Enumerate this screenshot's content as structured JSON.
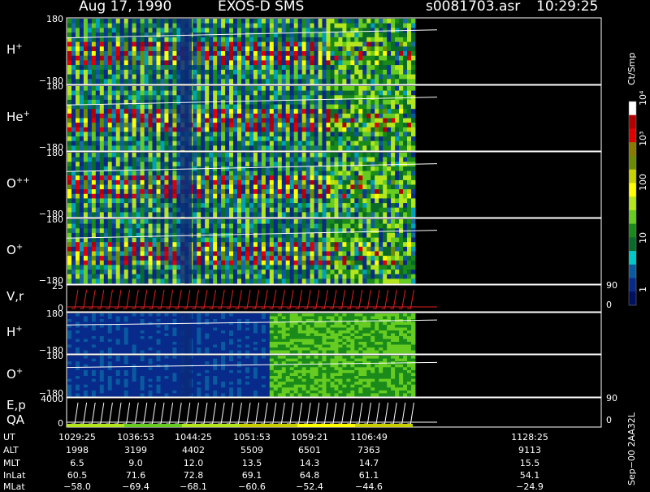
{
  "header": {
    "date": "Aug 17, 1990",
    "instrument": "EXOS-D SMS",
    "file": "s0081703.asr",
    "time": "10:29:25"
  },
  "panels": [
    {
      "label": "H",
      "sup": "+",
      "ytop": "180",
      "ybot": "−180"
    },
    {
      "label": "He",
      "sup": "+",
      "ytop": "180",
      "ybot": "−180"
    },
    {
      "label": "O",
      "sup": "++",
      "ytop": "180",
      "ybot": "−180"
    },
    {
      "label": "O",
      "sup": "+",
      "ytop": "180",
      "ybot": "−180"
    },
    {
      "label": "V,r",
      "sup": "",
      "ytop": "25",
      "ybot": "0",
      "rtop": "90",
      "rbot": "0"
    },
    {
      "label": "H",
      "sup": "+",
      "ytop": "180",
      "ybot": "−180"
    },
    {
      "label": "O",
      "sup": "+",
      "ytop": "180",
      "ybot": "−180"
    },
    {
      "label": "E,p",
      "label2": "QA",
      "sup": "",
      "ytop": "4000",
      "ybot": "0",
      "rtop": "90",
      "rbot": "0"
    }
  ],
  "colorbar": {
    "unit": "Ct/Smp",
    "labels": [
      "10⁴",
      "10³",
      "100",
      "10",
      "1"
    ],
    "colors": [
      "#ffffff",
      "#b30000",
      "#e00000",
      "#8a7a00",
      "#6e8a00",
      "#c8d000",
      "#ffff00",
      "#b4e61e",
      "#66cc22",
      "#1a8a1a",
      "#0a6a2a",
      "#00c8c8",
      "#0a5aa0",
      "#082a8a",
      "#001060"
    ]
  },
  "footer": {
    "rows": [
      "UT",
      "ALT",
      "MLT",
      "InLat",
      "MLat"
    ],
    "columns": [
      {
        "ut": "1029:25",
        "alt": "1998",
        "mlt": "6.5",
        "inlat": "60.5",
        "mlat": "−58.0"
      },
      {
        "ut": "1036:53",
        "alt": "3199",
        "mlt": "9.0",
        "inlat": "71.6",
        "mlat": "−69.4"
      },
      {
        "ut": "1044:25",
        "alt": "4402",
        "mlt": "12.0",
        "inlat": "72.8",
        "mlat": "−68.1"
      },
      {
        "ut": "1051:53",
        "alt": "5509",
        "mlt": "13.5",
        "inlat": "69.1",
        "mlat": "−60.6"
      },
      {
        "ut": "1059:21",
        "alt": "6501",
        "mlt": "14.3",
        "inlat": "64.8",
        "mlat": "−52.4"
      },
      {
        "ut": "1106:49",
        "alt": "7363",
        "mlt": "14.7",
        "inlat": "61.1",
        "mlat": "−44.6"
      },
      {
        "ut": "1128:25",
        "alt": "9113",
        "mlt": "15.5",
        "inlat": "54.1",
        "mlat": "−24.9"
      }
    ],
    "stamp": "Sep−00  2AA32L"
  },
  "chart_data": {
    "type": "heatmap",
    "title": "Aug 17, 1990   EXOS-D SMS",
    "x": [
      "1029:25",
      "1036:53",
      "1044:25",
      "1051:53",
      "1059:21",
      "1106:49",
      "1128:25"
    ],
    "panels": [
      "H+",
      "He+",
      "O++",
      "O+",
      "V,r",
      "H+",
      "O+",
      "E,p QA"
    ],
    "ylim_angle": [
      -180,
      180
    ],
    "ylim_vr": [
      0,
      25
    ],
    "ylim_ep": [
      0,
      4000
    ],
    "colorbar_unit": "Ct/Smp",
    "colorbar_range": [
      1,
      10000
    ],
    "colorbar_scale": "log"
  }
}
